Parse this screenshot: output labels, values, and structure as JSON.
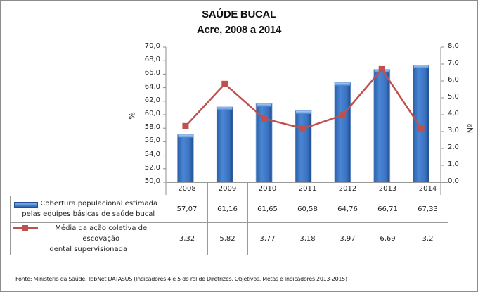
{
  "title": "SAÚDE BUCAL",
  "subtitle": "Acre, 2008 a 2014",
  "left_axis": {
    "title": "%",
    "ticks": [
      "70,0",
      "68,0",
      "66,0",
      "64,0",
      "62,0",
      "60,0",
      "58,0",
      "56,0",
      "54,0",
      "52,0",
      "50,0"
    ]
  },
  "right_axis": {
    "title": "Nº",
    "ticks": [
      "8,0",
      "7,0",
      "6,0",
      "5,0",
      "4,0",
      "3,0",
      "2,0",
      "1,0",
      "0,0"
    ]
  },
  "table": {
    "years": [
      "2008",
      "2009",
      "2010",
      "2011",
      "2012",
      "2013",
      "2014"
    ],
    "rows": [
      {
        "legend_line1": "Cobertura populacional estimada",
        "legend_line2": "pelas equipes básicas de saúde bucal",
        "values": [
          "57,07",
          "61,16",
          "61,65",
          "60,58",
          "64,76",
          "66,71",
          "67,33"
        ]
      },
      {
        "legend_line1": "Média da ação coletiva de escovação",
        "legend_line2": "dental supervisionada",
        "values": [
          "3,32",
          "5,82",
          "3,77",
          "3,18",
          "3,97",
          "6,69",
          "3,2"
        ]
      }
    ]
  },
  "source": "Fonte: Ministério da Saúde. TabNet DATASUS (Indicadores 4 e 5 do rol de Diretrizes, Objetivos, Metas e Indicadores 2013-2015)",
  "colors": {
    "bar": "#3a74c4",
    "bar_dark": "#1f4f94",
    "line": "#c0504d"
  },
  "chart_data": {
    "type": "bar+line",
    "title": "SAÚDE BUCAL",
    "subtitle": "Acre, 2008 a 2014",
    "categories": [
      "2008",
      "2009",
      "2010",
      "2011",
      "2012",
      "2013",
      "2014"
    ],
    "series": [
      {
        "name": "Cobertura populacional estimada pelas equipes básicas de saúde bucal",
        "type": "bar",
        "axis": "left",
        "values": [
          57.07,
          61.16,
          61.65,
          60.58,
          64.76,
          66.71,
          67.33
        ]
      },
      {
        "name": "Média da ação coletiva de escovação dental supervisionada",
        "type": "line",
        "axis": "right",
        "values": [
          3.32,
          5.82,
          3.77,
          3.18,
          3.97,
          6.69,
          3.2
        ]
      }
    ],
    "ylabel": "%",
    "y2label": "Nº",
    "ylim": [
      50,
      70
    ],
    "y2lim": [
      0,
      8
    ],
    "ytick_step": 2,
    "y2tick_step": 1,
    "grid": false,
    "legend_position": "data-table"
  }
}
